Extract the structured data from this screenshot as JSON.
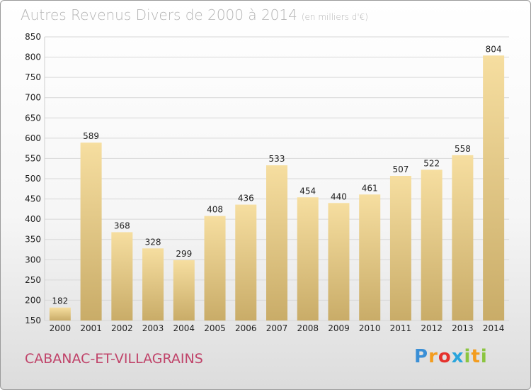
{
  "title": "Autres Revenus Divers de 2000 à 2014",
  "subtitle": "(en milliers d'€)",
  "commune": "CABANAC-ET-VILLAGRAINS",
  "logo": {
    "letters": [
      "P",
      "r",
      "o",
      "x",
      "i",
      "t",
      "i"
    ],
    "colors": [
      "#3a8fd6",
      "#f39c1e",
      "#e5322d",
      "#2aa5dc",
      "#8bc540",
      "#f39c1e",
      "#8bc540"
    ]
  },
  "colors": {
    "bar_light": "#f6dea0",
    "bar_dark": "#c9ac68",
    "grid": "#d8d8d8",
    "commune": "#c0446a",
    "title": "#b5b5b5"
  },
  "chart_data": {
    "type": "bar",
    "title": "Autres Revenus Divers de 2000 à 2014",
    "subtitle": "(en milliers d'€)",
    "categories": [
      "2000",
      "2001",
      "2002",
      "2003",
      "2004",
      "2005",
      "2006",
      "2007",
      "2008",
      "2009",
      "2010",
      "2011",
      "2012",
      "2013",
      "2014"
    ],
    "values": [
      182,
      589,
      368,
      328,
      299,
      408,
      436,
      533,
      454,
      440,
      461,
      507,
      522,
      558,
      804
    ],
    "ylim": [
      150,
      850
    ],
    "yticks": [
      150,
      200,
      250,
      300,
      350,
      400,
      450,
      500,
      550,
      600,
      650,
      700,
      750,
      800,
      850
    ],
    "xlabel": "",
    "ylabel": "",
    "grid": true,
    "data_labels": true
  }
}
